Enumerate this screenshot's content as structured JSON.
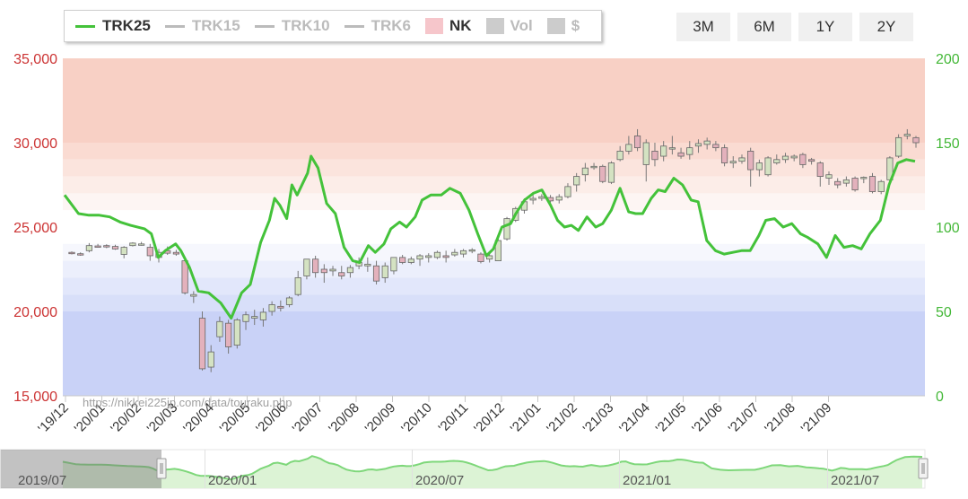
{
  "legend": [
    {
      "label": "TRK25",
      "kind": "line",
      "color": "#44c23a",
      "active": true
    },
    {
      "label": "TRK15",
      "kind": "line",
      "color": "#bbbbbb",
      "active": false
    },
    {
      "label": "TRK10",
      "kind": "line",
      "color": "#bbbbbb",
      "active": false
    },
    {
      "label": "TRK6",
      "kind": "line",
      "color": "#bbbbbb",
      "active": false
    },
    {
      "label": "NK",
      "kind": "box",
      "color": "#f6c6cb",
      "active": true
    },
    {
      "label": "Vol",
      "kind": "box",
      "color": "#cccccc",
      "active": false
    },
    {
      "label": "$",
      "kind": "box",
      "color": "#cccccc",
      "active": false
    }
  ],
  "range_buttons": [
    "3M",
    "6M",
    "1Y",
    "2Y"
  ],
  "colors": {
    "trk_line": "#44c23a",
    "left_axis": "#cc3333",
    "right_axis": "#44b838",
    "candle_up": "#d4e2c2",
    "candle_down": "#e3b1bc",
    "nav_fill": "#dcf3d5",
    "nav_line": "#7ed77a"
  },
  "watermark": "https://nikkei225jp.com/data/touraku.php",
  "nav_labels": [
    "2019/07",
    "2020/01",
    "2020/07",
    "2021/01",
    "2021/07"
  ],
  "chart_data": {
    "type": "candlestick_line",
    "x_categories": [
      "'19/12",
      "'20/01",
      "'20/02",
      "'20/03",
      "'20/04",
      "'20/05",
      "'20/06",
      "'20/07",
      "'20/08",
      "'20/09",
      "'20/10",
      "'20/11",
      "'20/12",
      "'21/01",
      "'21/02",
      "'21/03",
      "'21/04",
      "'21/05",
      "'21/06",
      "'21/07",
      "'21/08",
      "'21/09"
    ],
    "left_axis": {
      "ticks": [
        "15,000",
        "20,000",
        "25,000",
        "30,000",
        "35,000"
      ],
      "min": 15000,
      "max": 35000
    },
    "right_axis": {
      "ticks": [
        "0",
        "50",
        "100",
        "150",
        "200"
      ],
      "min": 0,
      "max": 200
    },
    "bands": [
      {
        "from": 30000,
        "to": 35000,
        "color": "#f8d0c5"
      },
      {
        "from": 29000,
        "to": 30000,
        "color": "#fadbd2"
      },
      {
        "from": 28000,
        "to": 29000,
        "color": "#fbe4dd"
      },
      {
        "from": 27000,
        "to": 28000,
        "color": "#fcede8"
      },
      {
        "from": 26000,
        "to": 27000,
        "color": "#fdf5f3"
      },
      {
        "from": 24000,
        "to": 26000,
        "color": "#ffffff"
      },
      {
        "from": 23000,
        "to": 24000,
        "color": "#f6f7fd"
      },
      {
        "from": 22000,
        "to": 23000,
        "color": "#eceffc"
      },
      {
        "from": 21000,
        "to": 22000,
        "color": "#e2e7fb"
      },
      {
        "from": 20000,
        "to": 21000,
        "color": "#d8dff9"
      },
      {
        "from": 15000,
        "to": 20000,
        "color": "#c9d2f7"
      }
    ],
    "nk_weekly": [
      [
        23500,
        23560,
        23380,
        23450
      ],
      [
        23420,
        23500,
        23300,
        23380
      ],
      [
        23600,
        24050,
        23500,
        23900
      ],
      [
        23880,
        24000,
        23780,
        23870
      ],
      [
        23900,
        23980,
        23750,
        23850
      ],
      [
        23850,
        23950,
        23650,
        23700
      ],
      [
        23380,
        23870,
        23150,
        23800
      ],
      [
        23900,
        24100,
        23850,
        24050
      ],
      [
        24000,
        24120,
        23900,
        24000
      ],
      [
        23800,
        24000,
        23000,
        23300
      ],
      [
        23200,
        23700,
        22900,
        23500
      ],
      [
        23600,
        23850,
        23350,
        23450
      ],
      [
        23500,
        23650,
        23300,
        23400
      ],
      [
        23000,
        23200,
        21000,
        21100
      ],
      [
        20900,
        21200,
        20500,
        21000
      ],
      [
        19600,
        20000,
        16500,
        16600
      ],
      [
        16700,
        18000,
        16400,
        17600
      ],
      [
        18500,
        19700,
        18200,
        19400
      ],
      [
        19300,
        19500,
        17500,
        17900
      ],
      [
        18000,
        19600,
        17800,
        19500
      ],
      [
        19400,
        20000,
        18900,
        19800
      ],
      [
        19600,
        20100,
        19200,
        19700
      ],
      [
        19500,
        20200,
        19100,
        19950
      ],
      [
        20000,
        20600,
        19750,
        20400
      ],
      [
        20300,
        20650,
        20000,
        20200
      ],
      [
        20400,
        20900,
        20250,
        20800
      ],
      [
        21000,
        22400,
        20900,
        22000
      ],
      [
        22100,
        23100,
        21900,
        23100
      ],
      [
        23100,
        23300,
        22000,
        22300
      ],
      [
        22500,
        22800,
        21700,
        22300
      ],
      [
        22400,
        22700,
        22100,
        22500
      ],
      [
        22300,
        22700,
        21900,
        22100
      ],
      [
        22300,
        22750,
        22000,
        22600
      ],
      [
        22700,
        23200,
        22500,
        22900
      ],
      [
        22700,
        23200,
        22350,
        22800
      ],
      [
        22700,
        23000,
        21600,
        21800
      ],
      [
        22000,
        22900,
        21700,
        22700
      ],
      [
        22400,
        23200,
        22200,
        23200
      ],
      [
        23200,
        23350,
        22800,
        22900
      ],
      [
        22900,
        23250,
        22800,
        23100
      ],
      [
        23100,
        23400,
        22700,
        23300
      ],
      [
        23200,
        23450,
        22900,
        23300
      ],
      [
        23200,
        23600,
        23100,
        23500
      ],
      [
        23300,
        23600,
        22900,
        23200
      ],
      [
        23350,
        23700,
        23250,
        23500
      ],
      [
        23400,
        23700,
        23200,
        23600
      ],
      [
        23600,
        23750,
        23450,
        23650
      ],
      [
        23400,
        23500,
        22850,
        22950
      ],
      [
        23100,
        23450,
        22900,
        23300
      ],
      [
        23000,
        24300,
        23000,
        24200
      ],
      [
        24300,
        25600,
        24200,
        25500
      ],
      [
        25400,
        26200,
        25300,
        26100
      ],
      [
        26000,
        26700,
        25800,
        26500
      ],
      [
        26600,
        26900,
        26350,
        26700
      ],
      [
        26700,
        26950,
        26550,
        26800
      ],
      [
        26750,
        26900,
        26450,
        26550
      ],
      [
        26600,
        26950,
        26400,
        26800
      ],
      [
        26800,
        27600,
        26700,
        27400
      ],
      [
        27500,
        28200,
        27100,
        28000
      ],
      [
        28100,
        28800,
        27700,
        28500
      ],
      [
        28600,
        28800,
        28400,
        28600
      ],
      [
        28600,
        28700,
        27600,
        27700
      ],
      [
        27650,
        28900,
        27550,
        28800
      ],
      [
        29000,
        29800,
        28900,
        29500
      ],
      [
        29500,
        30400,
        29300,
        29900
      ],
      [
        30400,
        30800,
        29500,
        29700
      ],
      [
        28700,
        30200,
        27700,
        30000
      ],
      [
        29500,
        30000,
        28600,
        29000
      ],
      [
        29200,
        30100,
        28900,
        29800
      ],
      [
        29700,
        30400,
        29300,
        29700
      ],
      [
        29400,
        29700,
        29050,
        29200
      ],
      [
        29300,
        30100,
        29000,
        29700
      ],
      [
        29800,
        30200,
        29400,
        29950
      ],
      [
        29900,
        30300,
        29600,
        30100
      ],
      [
        29900,
        30100,
        29500,
        29700
      ],
      [
        29700,
        29900,
        28600,
        28800
      ],
      [
        28800,
        29200,
        28500,
        28900
      ],
      [
        28900,
        29300,
        28750,
        29100
      ],
      [
        29500,
        29700,
        27400,
        28400
      ],
      [
        28400,
        29000,
        28000,
        28800
      ],
      [
        28100,
        29200,
        28000,
        29100
      ],
      [
        28800,
        29300,
        28700,
        29000
      ],
      [
        29000,
        29400,
        28800,
        29200
      ],
      [
        29100,
        29300,
        28900,
        29200
      ],
      [
        29300,
        29400,
        28500,
        28700
      ],
      [
        29000,
        29100,
        28700,
        28900
      ],
      [
        28800,
        28900,
        27400,
        28000
      ],
      [
        27900,
        28300,
        27500,
        28100
      ],
      [
        27700,
        27900,
        27300,
        27500
      ],
      [
        27600,
        28000,
        27400,
        27800
      ],
      [
        27900,
        28000,
        27100,
        27200
      ],
      [
        27900,
        28000,
        27600,
        27950
      ],
      [
        28000,
        28200,
        27000,
        27100
      ],
      [
        27100,
        27800,
        26950,
        27700
      ],
      [
        27800,
        29200,
        27700,
        29100
      ],
      [
        29200,
        30500,
        29100,
        30300
      ],
      [
        30400,
        30800,
        30200,
        30500
      ],
      [
        30300,
        30400,
        29700,
        30000
      ]
    ],
    "trk25": [
      [
        0,
        119
      ],
      [
        8,
        108
      ],
      [
        14,
        107
      ],
      [
        20,
        107
      ],
      [
        26,
        106
      ],
      [
        32,
        103
      ],
      [
        38,
        101
      ],
      [
        46,
        99
      ],
      [
        50,
        96
      ],
      [
        54,
        82
      ],
      [
        58,
        86
      ],
      [
        64,
        90
      ],
      [
        67,
        86
      ],
      [
        72,
        76
      ],
      [
        77,
        62
      ],
      [
        83,
        61
      ],
      [
        90,
        55
      ],
      [
        96,
        46
      ],
      [
        102,
        61
      ],
      [
        107,
        66
      ],
      [
        113,
        91
      ],
      [
        118,
        104
      ],
      [
        121,
        117
      ],
      [
        124,
        113
      ],
      [
        128,
        105
      ],
      [
        131,
        125
      ],
      [
        134,
        119
      ],
      [
        140,
        132
      ],
      [
        142,
        142
      ],
      [
        146,
        135
      ],
      [
        151,
        114
      ],
      [
        156,
        108
      ],
      [
        161,
        88
      ],
      [
        166,
        80
      ],
      [
        170,
        79
      ],
      [
        175,
        89
      ],
      [
        179,
        85
      ],
      [
        184,
        90
      ],
      [
        188,
        99
      ],
      [
        193,
        103
      ],
      [
        197,
        100
      ],
      [
        202,
        106
      ],
      [
        206,
        116
      ],
      [
        211,
        119
      ],
      [
        217,
        119
      ],
      [
        222,
        123
      ],
      [
        228,
        120
      ],
      [
        233,
        110
      ],
      [
        238,
        96
      ],
      [
        243,
        83
      ],
      [
        247,
        87
      ],
      [
        252,
        100
      ],
      [
        257,
        102
      ],
      [
        260,
        108
      ],
      [
        265,
        116
      ],
      [
        270,
        120
      ],
      [
        275,
        122
      ],
      [
        280,
        113
      ],
      [
        284,
        104
      ],
      [
        288,
        100
      ],
      [
        292,
        101
      ],
      [
        296,
        98
      ],
      [
        301,
        106
      ],
      [
        306,
        100
      ],
      [
        310,
        102
      ],
      [
        315,
        110
      ],
      [
        320,
        123
      ],
      [
        325,
        109
      ],
      [
        329,
        108
      ],
      [
        333,
        108
      ],
      [
        338,
        117
      ],
      [
        342,
        122
      ],
      [
        346,
        121
      ],
      [
        351,
        129
      ],
      [
        356,
        125
      ],
      [
        361,
        116
      ],
      [
        365,
        115
      ],
      [
        370,
        92
      ],
      [
        375,
        86
      ],
      [
        380,
        84
      ],
      [
        385,
        85
      ],
      [
        390,
        86
      ],
      [
        395,
        86
      ],
      [
        400,
        95
      ],
      [
        404,
        104
      ],
      [
        409,
        105
      ],
      [
        414,
        100
      ],
      [
        419,
        102
      ],
      [
        424,
        96
      ],
      [
        428,
        94
      ],
      [
        434,
        90
      ],
      [
        439,
        82
      ],
      [
        444,
        95
      ],
      [
        449,
        88
      ],
      [
        454,
        89
      ],
      [
        459,
        87
      ],
      [
        464,
        96
      ],
      [
        470,
        104
      ],
      [
        475,
        125
      ],
      [
        480,
        138
      ],
      [
        485,
        140
      ],
      [
        490,
        139
      ]
    ]
  }
}
